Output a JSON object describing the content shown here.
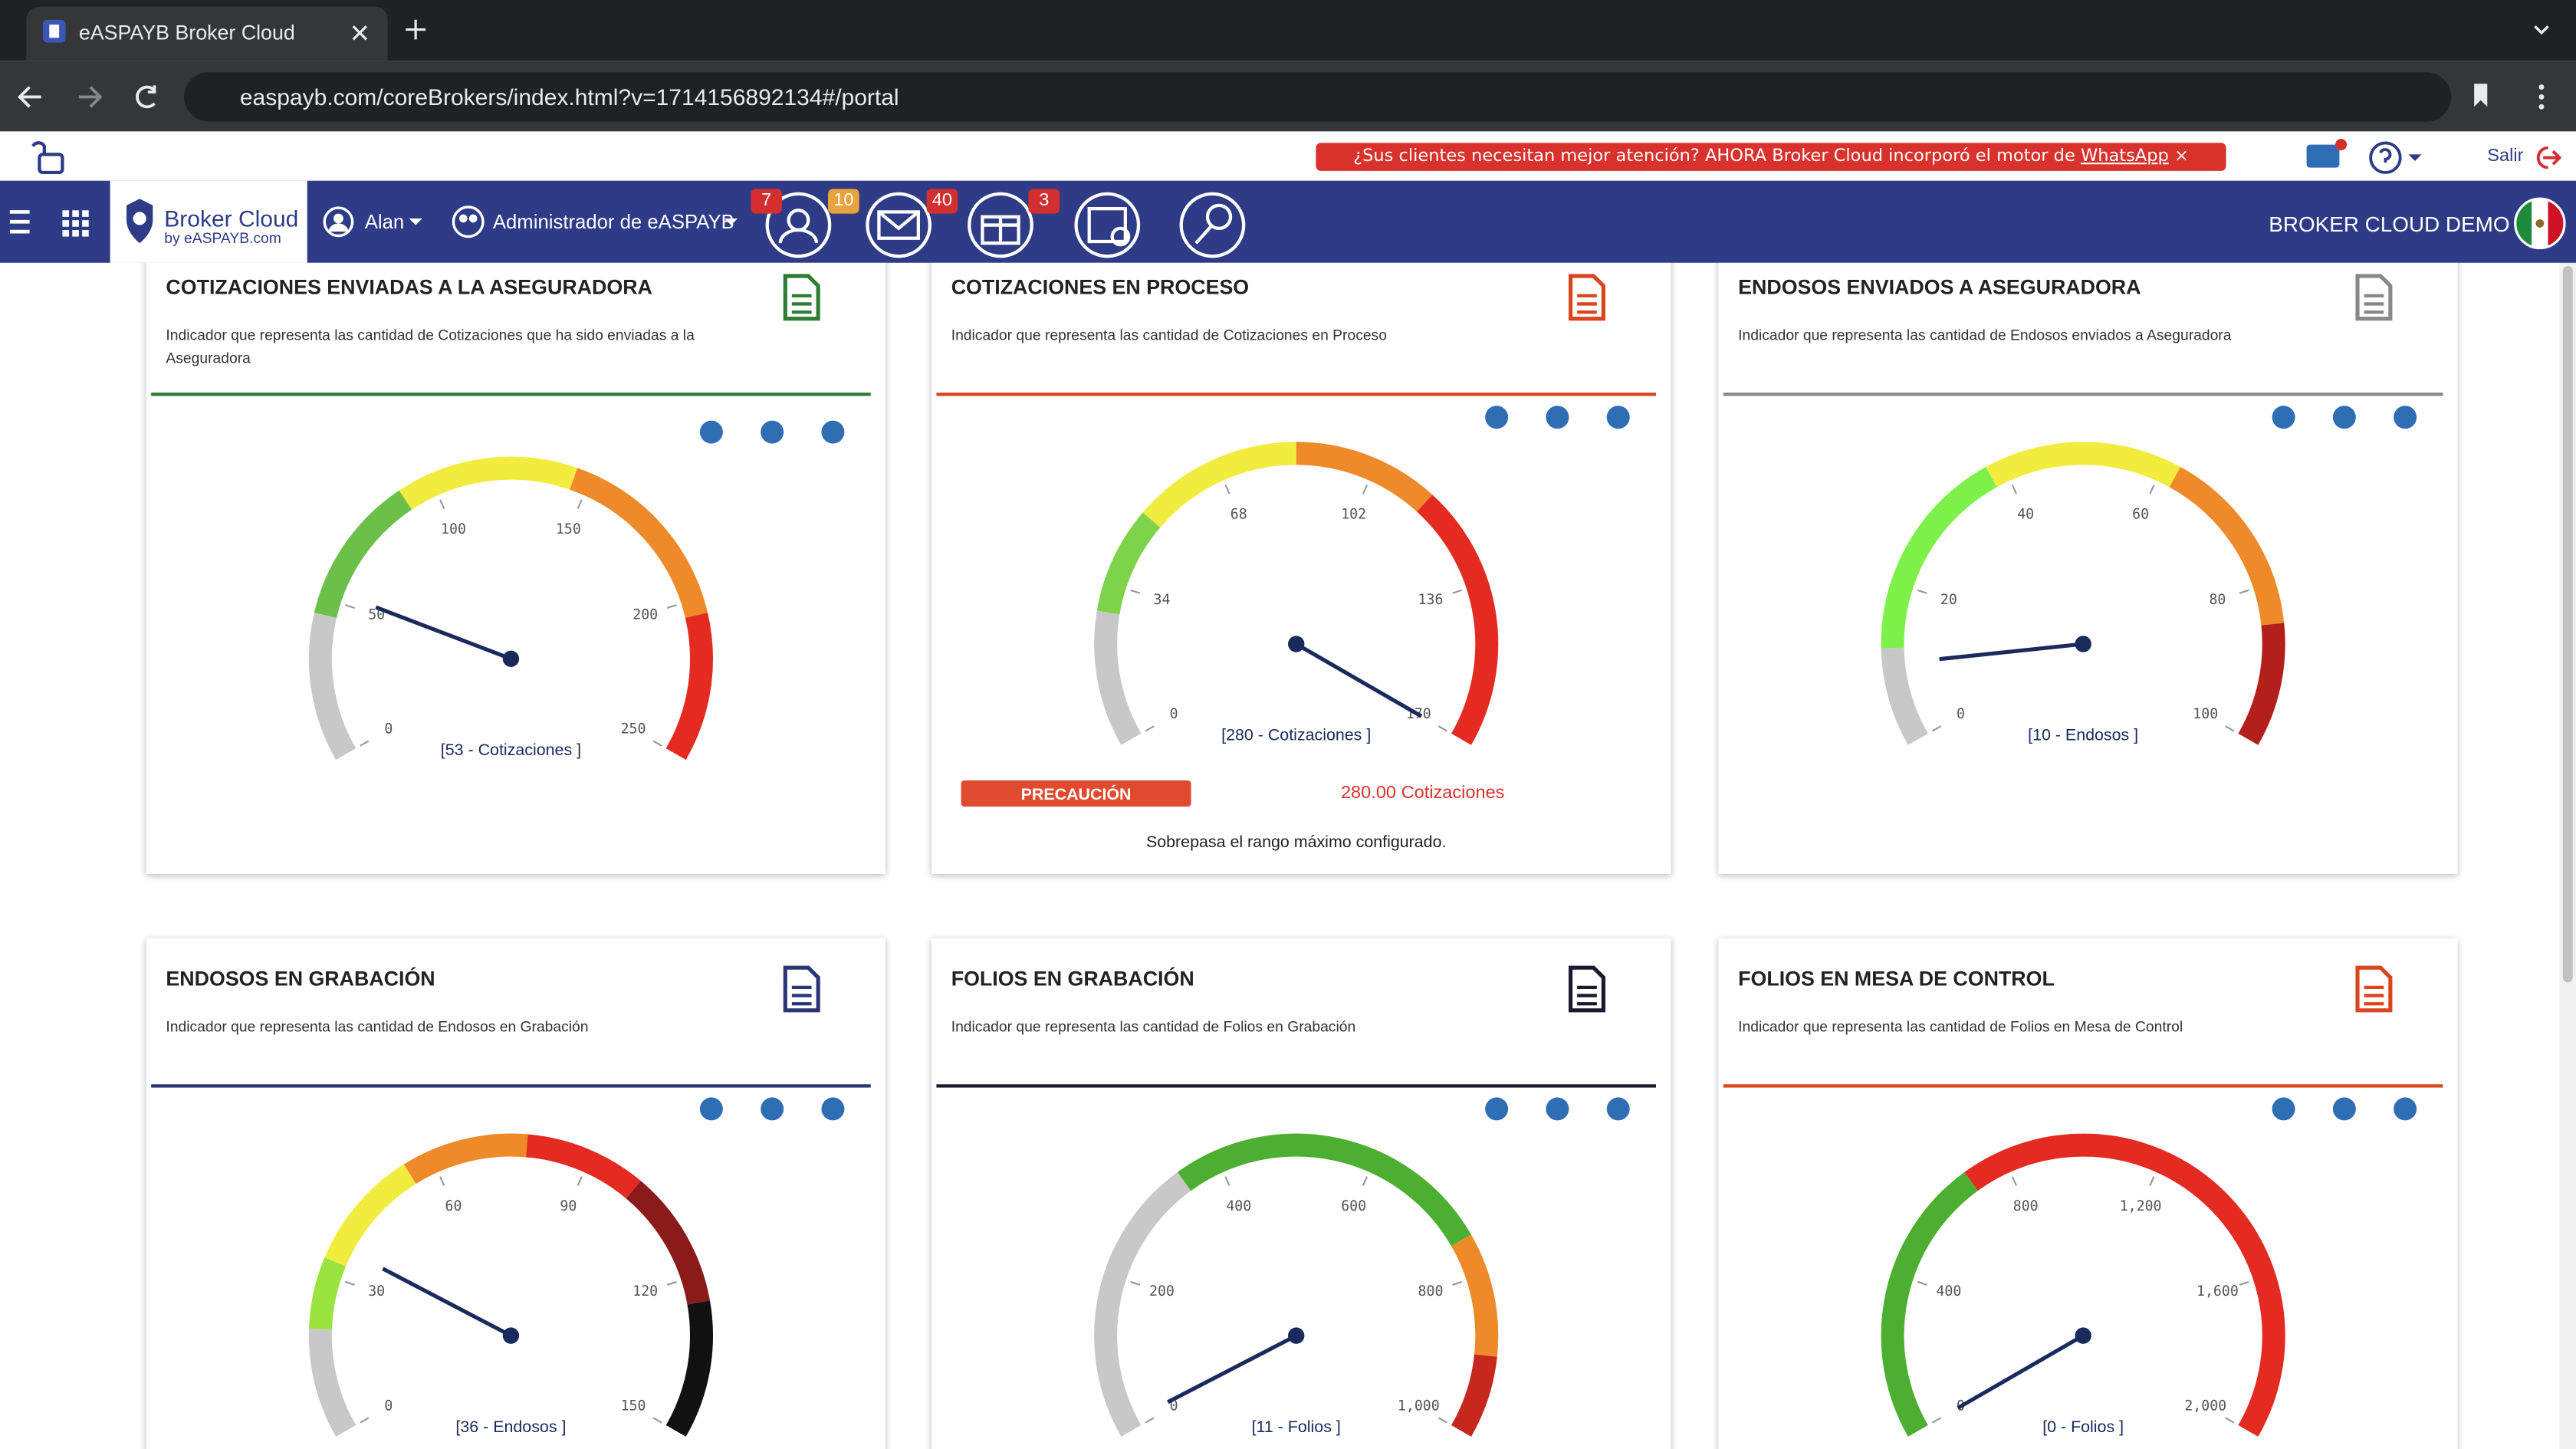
{
  "browser": {
    "tab_title": "eASPAYB Broker Cloud",
    "url": "easpayb.com/coreBrokers/index.html?v=1714156892134#/portal"
  },
  "banner": {
    "text": "¿Sus clientes necesitan mejor atención? AHORA Broker Cloud incorporó el motor de ",
    "link": "WhatsApp",
    "close": "×"
  },
  "logout": "Salir",
  "nav": {
    "logo_title": "Broker Cloud",
    "logo_sub": "by eASPAYB.com",
    "user": "Alan",
    "role": "Administrador de eASPAYB",
    "badges": [
      {
        "text": "7",
        "color": "#d32f2f"
      },
      {
        "text": "10",
        "color": "#e8a33d"
      },
      {
        "text": "40",
        "color": "#d32f2f"
      },
      {
        "text": "3",
        "color": "#d32f2f"
      }
    ],
    "company": "BROKER CLOUD DEMO"
  },
  "cards": [
    {
      "title": "COTIZACIONES ENVIADAS A LA ASEGURADORA",
      "description": "Indicador que representa las cantidad de Cotizaciones que ha sido enviadas a la Aseguradora",
      "color": "#2e7d32",
      "gauge": {
        "range": [
          0,
          250
        ],
        "ticks": [
          0,
          50,
          100,
          150,
          200,
          250
        ],
        "value": 53,
        "label": "[53 - Cotizaciones ]",
        "bands": [
          {
            "from": 0,
            "to": 45,
            "color": "#c8c8c8"
          },
          {
            "from": 45,
            "to": 90,
            "color": "#6cc04a"
          },
          {
            "from": 90,
            "to": 145,
            "color": "#f2ec3e"
          },
          {
            "from": 145,
            "to": 205,
            "color": "#ee8a2a"
          },
          {
            "from": 205,
            "to": 250,
            "color": "#e32b22"
          }
        ]
      }
    },
    {
      "title": "COTIZACIONES EN PROCESO",
      "description": "Indicador que representa las cantidad de Cotizaciones en Proceso",
      "color": "#d9451f",
      "gauge": {
        "range": [
          0,
          170
        ],
        "ticks": [
          0,
          34,
          68,
          102,
          136,
          170
        ],
        "value": 170,
        "label": "[280 - Cotizaciones ]",
        "bands": [
          {
            "from": 0,
            "to": 28,
            "color": "#c8c8c8"
          },
          {
            "from": 28,
            "to": 50,
            "color": "#7ed34a"
          },
          {
            "from": 50,
            "to": 85,
            "color": "#f2ec3e"
          },
          {
            "from": 85,
            "to": 115,
            "color": "#ee8a2a"
          },
          {
            "from": 115,
            "to": 170,
            "color": "#e32b22"
          }
        ]
      },
      "status": {
        "badge": "PRECAUCIÓN",
        "amount": "280.00 Cotizaciones",
        "message": "Sobrepasa el rango máximo configurado."
      }
    },
    {
      "title": "ENDOSOS ENVIADOS A ASEGURADORA",
      "description": "Indicador que representa las cantidad de Endosos enviados a Aseguradora",
      "color": "#888888",
      "gauge": {
        "range": [
          0,
          100
        ],
        "ticks": [
          0,
          20,
          40,
          60,
          80,
          100
        ],
        "value": 10,
        "label": "[10 - Endosos ]",
        "bands": [
          {
            "from": 0,
            "to": 12,
            "color": "#c8c8c8"
          },
          {
            "from": 12,
            "to": 38,
            "color": "#7ef04a"
          },
          {
            "from": 38,
            "to": 62,
            "color": "#f2ec3e"
          },
          {
            "from": 62,
            "to": 85,
            "color": "#ee8a2a"
          },
          {
            "from": 85,
            "to": 100,
            "color": "#b3201b"
          }
        ]
      }
    },
    {
      "title": "ENDOSOS EN GRABACIÓN",
      "description": "Indicador que representa las cantidad de Endosos en Grabación",
      "color": "#2b3577",
      "gauge": {
        "range": [
          0,
          150
        ],
        "ticks": [
          0,
          30,
          60,
          90,
          120,
          150
        ],
        "value": 36,
        "label": "[36 - Endosos ]",
        "bands": [
          {
            "from": 0,
            "to": 20,
            "color": "#c8c8c8"
          },
          {
            "from": 20,
            "to": 33,
            "color": "#9be33f"
          },
          {
            "from": 33,
            "to": 55,
            "color": "#f2ec3e"
          },
          {
            "from": 55,
            "to": 78,
            "color": "#ee8a2a"
          },
          {
            "from": 78,
            "to": 100,
            "color": "#e32b22"
          },
          {
            "from": 100,
            "to": 125,
            "color": "#8b1a1a"
          },
          {
            "from": 125,
            "to": 150,
            "color": "#111111"
          }
        ]
      }
    },
    {
      "title": "FOLIOS EN GRABACIÓN",
      "description": "Indicador que representa las cantidad de Folios en Grabación",
      "color": "#1a1a2e",
      "gauge": {
        "range": [
          0,
          1000
        ],
        "ticks": [
          0,
          200,
          400,
          600,
          800,
          {
            "value": 1000,
            "label": "1,000"
          }
        ],
        "value": 11,
        "label": "[11 - Folios ]",
        "bands": [
          {
            "from": 0,
            "to": 350,
            "color": "#c8c8c8"
          },
          {
            "from": 350,
            "to": 750,
            "color": "#4caf32"
          },
          {
            "from": 750,
            "to": 900,
            "color": "#ee8a2a"
          },
          {
            "from": 900,
            "to": 1000,
            "color": "#c62820"
          }
        ]
      }
    },
    {
      "title": "FOLIOS EN MESA DE CONTROL",
      "description": "Indicador que representa las cantidad de Folios en Mesa de Control",
      "color": "#d9451f",
      "gauge": {
        "range": [
          0,
          2000
        ],
        "ticks": [
          0,
          400,
          800,
          {
            "value": 1200,
            "label": "1,200"
          },
          {
            "value": 1600,
            "label": "1,600"
          },
          {
            "value": 2000,
            "label": "2,000"
          }
        ],
        "value": 0,
        "label": "[0 - Folios ]",
        "bands": [
          {
            "from": 0,
            "to": 700,
            "color": "#4caf32"
          },
          {
            "from": 700,
            "to": 2000,
            "color": "#e32b22"
          }
        ]
      }
    }
  ]
}
